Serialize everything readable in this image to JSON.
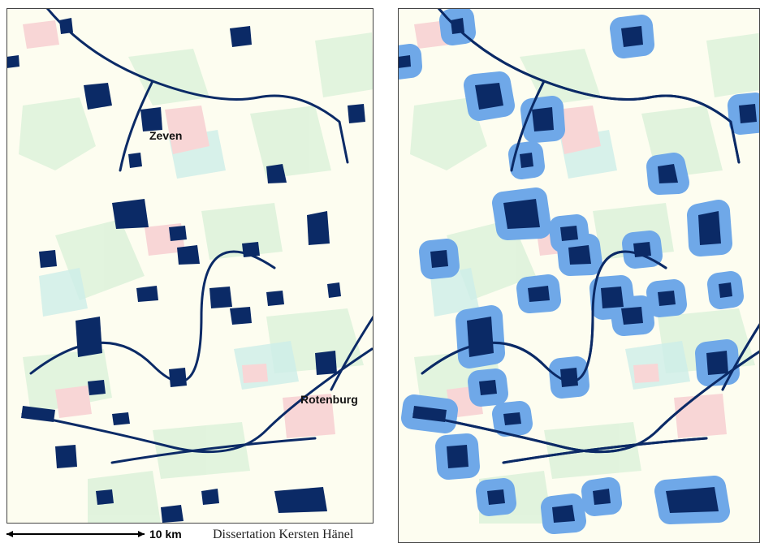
{
  "map": {
    "labels": [
      "Zeven",
      "Rotenburg"
    ],
    "scale_bar": "10 km",
    "credit": "Dissertation Kersten Hänel"
  }
}
